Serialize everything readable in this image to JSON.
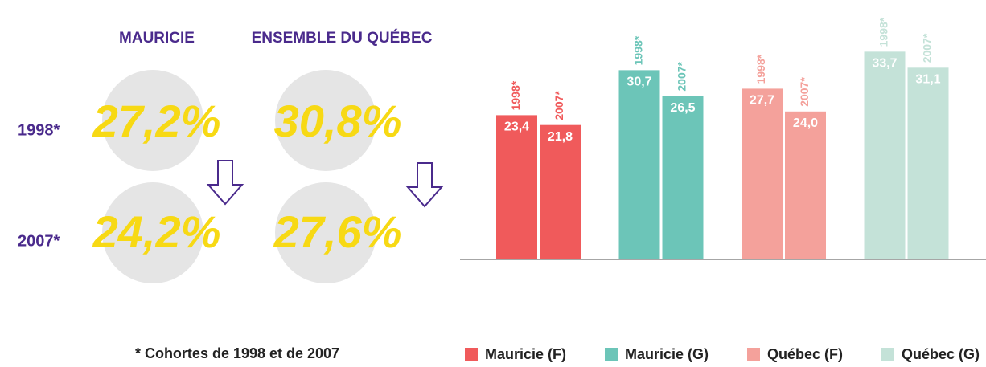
{
  "panel": {
    "columns": [
      "MAURICIE",
      "ENSEMBLE DU QUÉBEC"
    ],
    "rows": [
      {
        "label": "1998*",
        "values": [
          "27,2%",
          "30,8%"
        ]
      },
      {
        "label": "2007*",
        "values": [
          "24,2%",
          "27,6%"
        ]
      }
    ],
    "footnote": "* Cohortes de 1998 et de 2007"
  },
  "chart_data": {
    "type": "bar",
    "categories": [
      "1998*",
      "2007*"
    ],
    "ylim": [
      0,
      40
    ],
    "series": [
      {
        "name": "Mauricie (F)",
        "color": "#f05a5b",
        "values": [
          23.4,
          21.8
        ],
        "value_labels": [
          "23,4",
          "21,8"
        ]
      },
      {
        "name": "Mauricie (G)",
        "color": "#6cc5b8",
        "values": [
          30.7,
          26.5
        ],
        "value_labels": [
          "30,7",
          "26,5"
        ]
      },
      {
        "name": "Québec (F)",
        "color": "#f4a19b",
        "values": [
          27.7,
          24.0
        ],
        "value_labels": [
          "27,7",
          "24,0"
        ]
      },
      {
        "name": "Québec (G)",
        "color": "#c4e2d8",
        "values": [
          33.7,
          31.1
        ],
        "value_labels": [
          "33,7",
          "31,1"
        ]
      }
    ]
  }
}
